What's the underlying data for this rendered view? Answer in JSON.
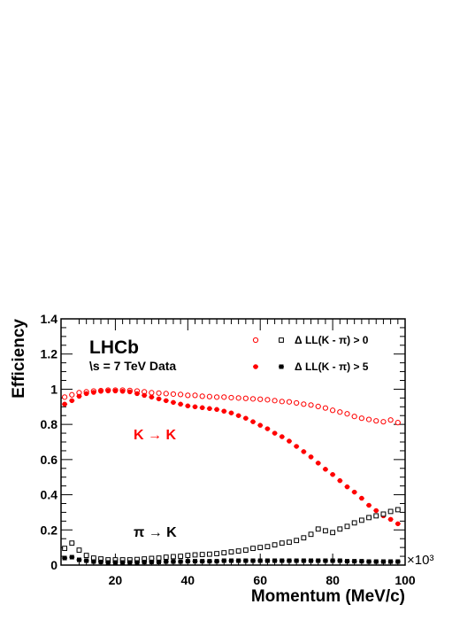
{
  "chart_data": {
    "type": "scatter",
    "title": "",
    "xlabel": "Momentum (MeV/c)",
    "ylabel": "Efficiency",
    "xlim": [
      5,
      100
    ],
    "ylim": [
      0,
      1.4
    ],
    "x_scale_label": "×10³",
    "x_ticks": [
      20,
      40,
      60,
      80,
      100
    ],
    "y_ticks": [
      0,
      0.2,
      0.4,
      0.6,
      0.8,
      1,
      1.2,
      1.4
    ],
    "grid": false,
    "legend_position": "top-right",
    "legend_title_circle_symbol": "○",
    "legend": [
      {
        "label": "Δ LL(K - π) > 0",
        "markers": [
          "open-circle",
          "open-square"
        ]
      },
      {
        "label": "Δ LL(K - π) > 5",
        "markers": [
          "filled-circle",
          "filled-square"
        ]
      }
    ],
    "annotations": {
      "experiment": "LHCb",
      "data_label": "\\s = 7 TeV Data",
      "k_to_k": "K → K",
      "pi_to_k": "π → K"
    },
    "colors": {
      "kaon": "#ff0000",
      "pion": "#000000"
    },
    "x": [
      6,
      8,
      10,
      12,
      14,
      16,
      18,
      20,
      22,
      24,
      26,
      28,
      30,
      32,
      34,
      36,
      38,
      40,
      42,
      44,
      46,
      48,
      50,
      52,
      54,
      56,
      58,
      60,
      62,
      64,
      66,
      68,
      70,
      72,
      74,
      76,
      78,
      80,
      82,
      84,
      86,
      88,
      90,
      92,
      94,
      96,
      98
    ],
    "series": [
      {
        "name": "K → K, Δ LL(K - π) > 0",
        "marker": "open-circle",
        "color": "#ff0000",
        "values": [
          0.955,
          0.968,
          0.98,
          0.985,
          0.99,
          0.992,
          0.995,
          0.995,
          0.995,
          0.993,
          0.99,
          0.985,
          0.98,
          0.978,
          0.975,
          0.972,
          0.97,
          0.965,
          0.965,
          0.96,
          0.958,
          0.955,
          0.955,
          0.952,
          0.95,
          0.948,
          0.945,
          0.943,
          0.94,
          0.935,
          0.93,
          0.928,
          0.922,
          0.915,
          0.91,
          0.902,
          0.893,
          0.88,
          0.87,
          0.86,
          0.845,
          0.835,
          0.828,
          0.82,
          0.815,
          0.825,
          0.81
        ]
      },
      {
        "name": "K → K, Δ LL(K - π) > 5",
        "marker": "filled-circle",
        "color": "#ff0000",
        "values": [
          0.915,
          0.935,
          0.96,
          0.975,
          0.982,
          0.988,
          0.99,
          0.99,
          0.988,
          0.985,
          0.975,
          0.965,
          0.955,
          0.945,
          0.935,
          0.925,
          0.915,
          0.905,
          0.9,
          0.895,
          0.89,
          0.885,
          0.875,
          0.865,
          0.85,
          0.835,
          0.815,
          0.795,
          0.775,
          0.75,
          0.73,
          0.705,
          0.675,
          0.645,
          0.615,
          0.58,
          0.545,
          0.515,
          0.48,
          0.445,
          0.415,
          0.38,
          0.34,
          0.31,
          0.28,
          0.26,
          0.235
        ]
      },
      {
        "name": "π → K, Δ LL(K - π) > 0",
        "marker": "open-square",
        "color": "#000000",
        "values": [
          0.095,
          0.125,
          0.085,
          0.055,
          0.04,
          0.035,
          0.03,
          0.03,
          0.03,
          0.03,
          0.032,
          0.035,
          0.038,
          0.04,
          0.045,
          0.048,
          0.05,
          0.055,
          0.058,
          0.06,
          0.062,
          0.065,
          0.07,
          0.075,
          0.08,
          0.085,
          0.095,
          0.1,
          0.105,
          0.115,
          0.125,
          0.13,
          0.14,
          0.155,
          0.175,
          0.205,
          0.195,
          0.185,
          0.205,
          0.22,
          0.24,
          0.255,
          0.27,
          0.28,
          0.29,
          0.305,
          0.315
        ]
      },
      {
        "name": "π → K, Δ LL(K - π) > 5",
        "marker": "filled-square",
        "color": "#000000",
        "values": [
          0.04,
          0.045,
          0.03,
          0.025,
          0.02,
          0.018,
          0.015,
          0.015,
          0.015,
          0.015,
          0.015,
          0.017,
          0.018,
          0.018,
          0.02,
          0.02,
          0.02,
          0.022,
          0.022,
          0.022,
          0.022,
          0.022,
          0.025,
          0.025,
          0.025,
          0.025,
          0.025,
          0.025,
          0.025,
          0.025,
          0.025,
          0.025,
          0.025,
          0.025,
          0.025,
          0.025,
          0.025,
          0.025,
          0.025,
          0.022,
          0.022,
          0.022,
          0.02,
          0.02,
          0.02,
          0.02,
          0.02
        ]
      }
    ]
  }
}
